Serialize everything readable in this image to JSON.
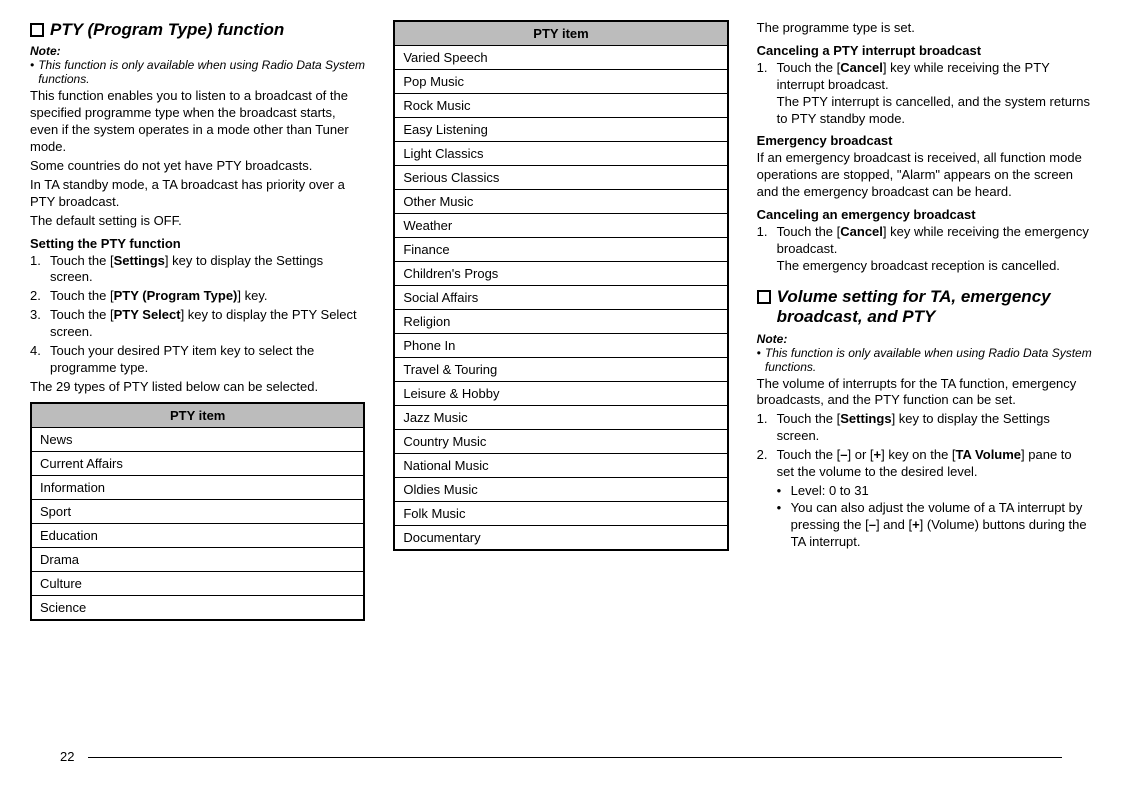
{
  "col1": {
    "section1_title": "PTY (Program Type) function",
    "note_label": "Note:",
    "note_text": "This function is only available when using Radio Data System functions.",
    "intro1": "This function enables you to listen to a broadcast of the specified programme type when the broadcast starts, even if the system operates in a mode other than Tuner mode.",
    "intro2": "Some countries do not yet have PTY broadcasts.",
    "intro3": "In TA standby mode, a TA broadcast has priority over a PTY broadcast.",
    "intro4": "The default setting is OFF.",
    "subheading1": "Setting the PTY function",
    "step1_pre": "Touch the [",
    "step1_bold": "Settings",
    "step1_post": "] key to display the Settings screen.",
    "step2_pre": "Touch the [",
    "step2_bold": "PTY (Program Type)",
    "step2_post": "] key.",
    "step3_pre": "Touch the [",
    "step3_bold": "PTY Select",
    "step3_post": "] key to display the PTY Select screen.",
    "step4": "Touch your desired PTY item key to select the programme type.",
    "outro": "The 29 types of PTY listed below can be selected.",
    "table_header": "PTY item",
    "table_rows": [
      "News",
      "Current Affairs",
      "Information",
      "Sport",
      "Education",
      "Drama",
      "Culture",
      "Science"
    ]
  },
  "col2": {
    "table_header": "PTY item",
    "table_rows": [
      "Varied Speech",
      "Pop Music",
      "Rock Music",
      "Easy Listening",
      "Light Classics",
      "Serious Classics",
      "Other Music",
      "Weather",
      "Finance",
      "Children's Progs",
      "Social Affairs",
      "Religion",
      "Phone In",
      "Travel & Touring",
      "Leisure & Hobby",
      "Jazz Music",
      "Country Music",
      "National Music",
      "Oldies Music",
      "Folk Music",
      "Documentary"
    ]
  },
  "col3": {
    "line1": "The programme type is set.",
    "sub1": "Canceling a PTY interrupt broadcast",
    "s1_step1_pre": "Touch the [",
    "s1_step1_bold": "Cancel",
    "s1_step1_post": "] key while receiving the PTY interrupt broadcast.",
    "s1_step1_result": "The PTY interrupt is cancelled, and the system returns to PTY standby mode.",
    "sub2": "Emergency broadcast",
    "emergency_text": "If an emergency broadcast is received, all function mode operations are stopped, \"Alarm\" appears on the screen and the emergency broadcast can be heard.",
    "sub3": "Canceling an emergency broadcast",
    "s3_step1_pre": "Touch the [",
    "s3_step1_bold": "Cancel",
    "s3_step1_post": "] key while receiving the emergency broadcast.",
    "s3_step1_result": "The emergency broadcast reception is cancelled.",
    "section2_title": "Volume setting for TA, emergency broadcast, and PTY",
    "note_label": "Note:",
    "note_text": "This function is only available when using Radio Data System functions.",
    "vol_intro": "The volume of interrupts for the TA function, emergency broadcasts, and the PTY function can be set.",
    "v_step1_pre": "Touch the [",
    "v_step1_bold": "Settings",
    "v_step1_post": "] key to display the Settings screen.",
    "v_step2_a": "Touch the [",
    "v_step2_b": "–",
    "v_step2_c": "] or [",
    "v_step2_d": "+",
    "v_step2_e": "] key on the [",
    "v_step2_f": "TA Volume",
    "v_step2_g": "] pane to set the volume to the desired level.",
    "v_bullet1": "Level: 0 to 31",
    "v_bullet2_a": "You can also adjust the volume of a TA interrupt by pressing the [",
    "v_bullet2_b": "–",
    "v_bullet2_c": "] and [",
    "v_bullet2_d": "+",
    "v_bullet2_e": "] (Volume) buttons during the TA interrupt."
  },
  "page_number": "22"
}
